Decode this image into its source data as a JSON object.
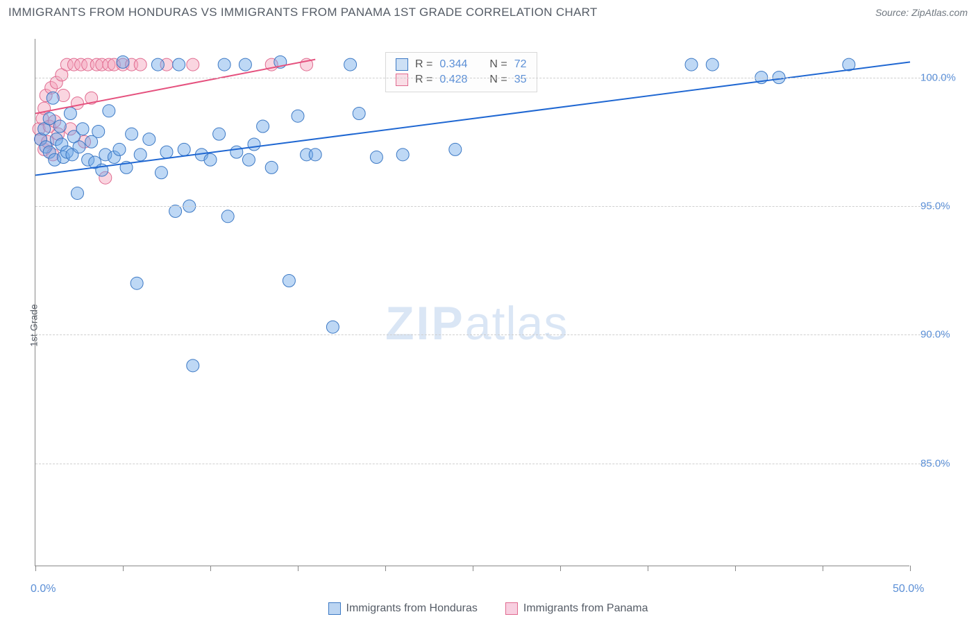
{
  "header": {
    "title": "IMMIGRANTS FROM HONDURAS VS IMMIGRANTS FROM PANAMA 1ST GRADE CORRELATION CHART",
    "source": "Source: ZipAtlas.com"
  },
  "chart": {
    "type": "scatter",
    "ylabel": "1st Grade",
    "watermark_a": "ZIP",
    "watermark_b": "atlas",
    "background_color": "#ffffff",
    "grid_color": "#cfcfcf",
    "axis_color": "#888888",
    "tick_label_color": "#5b8fd6",
    "xlim": [
      0,
      50
    ],
    "ylim": [
      81,
      101.5
    ],
    "xticks": [
      0,
      5,
      10,
      15,
      20,
      25,
      30,
      35,
      40,
      45,
      50
    ],
    "xtick_labels": {
      "0": "0.0%",
      "50": "50.0%"
    },
    "yticks": [
      85,
      90,
      95,
      100
    ],
    "ytick_labels": {
      "85": "85.0%",
      "90": "90.0%",
      "95": "95.0%",
      "100": "100.0%"
    },
    "marker_radius": 9,
    "marker_opacity": 0.45,
    "line_width": 2,
    "series": [
      {
        "name": "Immigrants from Honduras",
        "fill_color": "#6ea8e8",
        "stroke_color": "#3b78c4",
        "line_color": "#1f67d2",
        "r_value": "0.344",
        "n_value": "72",
        "trend": {
          "x1": 0,
          "y1": 96.2,
          "x2": 50,
          "y2": 100.6
        },
        "points": [
          [
            0.3,
            97.6
          ],
          [
            0.5,
            98.0
          ],
          [
            0.6,
            97.3
          ],
          [
            0.8,
            98.4
          ],
          [
            0.8,
            97.1
          ],
          [
            1.0,
            99.2
          ],
          [
            1.1,
            96.8
          ],
          [
            1.2,
            97.6
          ],
          [
            1.4,
            98.1
          ],
          [
            1.5,
            97.4
          ],
          [
            1.6,
            96.9
          ],
          [
            1.8,
            97.1
          ],
          [
            2.0,
            98.6
          ],
          [
            2.1,
            97.0
          ],
          [
            2.2,
            97.7
          ],
          [
            2.4,
            95.5
          ],
          [
            2.5,
            97.3
          ],
          [
            2.7,
            98.0
          ],
          [
            3.0,
            96.8
          ],
          [
            3.2,
            97.5
          ],
          [
            3.4,
            96.7
          ],
          [
            3.6,
            97.9
          ],
          [
            3.8,
            96.4
          ],
          [
            4.0,
            97.0
          ],
          [
            4.2,
            98.7
          ],
          [
            4.5,
            96.9
          ],
          [
            4.8,
            97.2
          ],
          [
            5.0,
            100.6
          ],
          [
            5.2,
            96.5
          ],
          [
            5.5,
            97.8
          ],
          [
            5.8,
            92.0
          ],
          [
            6.0,
            97.0
          ],
          [
            6.5,
            97.6
          ],
          [
            7.0,
            100.5
          ],
          [
            7.2,
            96.3
          ],
          [
            7.5,
            97.1
          ],
          [
            8.0,
            94.8
          ],
          [
            8.2,
            100.5
          ],
          [
            8.5,
            97.2
          ],
          [
            8.8,
            95.0
          ],
          [
            9.0,
            88.8
          ],
          [
            9.5,
            97.0
          ],
          [
            10.0,
            96.8
          ],
          [
            10.5,
            97.8
          ],
          [
            10.8,
            100.5
          ],
          [
            11.0,
            94.6
          ],
          [
            11.5,
            97.1
          ],
          [
            12.0,
            100.5
          ],
          [
            12.2,
            96.8
          ],
          [
            12.5,
            97.4
          ],
          [
            13.0,
            98.1
          ],
          [
            13.5,
            96.5
          ],
          [
            14.0,
            100.6
          ],
          [
            14.5,
            92.1
          ],
          [
            15.0,
            98.5
          ],
          [
            15.5,
            97.0
          ],
          [
            16.0,
            97.0
          ],
          [
            17.0,
            90.3
          ],
          [
            18.0,
            100.5
          ],
          [
            18.5,
            98.6
          ],
          [
            19.5,
            96.9
          ],
          [
            20.5,
            100.5
          ],
          [
            21.0,
            97.0
          ],
          [
            24.0,
            97.2
          ],
          [
            25.5,
            100.5
          ],
          [
            26.3,
            100.5
          ],
          [
            27.0,
            100.5
          ],
          [
            37.5,
            100.5
          ],
          [
            38.7,
            100.5
          ],
          [
            41.5,
            100.0
          ],
          [
            42.5,
            100.0
          ],
          [
            46.5,
            100.5
          ]
        ]
      },
      {
        "name": "Immigrants from Panama",
        "fill_color": "#f3a2ba",
        "stroke_color": "#e06a8f",
        "line_color": "#e5517e",
        "r_value": "0.428",
        "n_value": "35",
        "trend": {
          "x1": 0,
          "y1": 98.6,
          "x2": 16,
          "y2": 100.7
        },
        "points": [
          [
            0.2,
            98.0
          ],
          [
            0.3,
            97.6
          ],
          [
            0.4,
            98.4
          ],
          [
            0.5,
            97.2
          ],
          [
            0.5,
            98.8
          ],
          [
            0.6,
            99.3
          ],
          [
            0.7,
            97.5
          ],
          [
            0.8,
            98.1
          ],
          [
            0.9,
            99.6
          ],
          [
            1.0,
            97.0
          ],
          [
            1.1,
            98.3
          ],
          [
            1.2,
            99.8
          ],
          [
            1.3,
            97.8
          ],
          [
            1.5,
            100.1
          ],
          [
            1.6,
            99.3
          ],
          [
            1.8,
            100.5
          ],
          [
            2.0,
            98.0
          ],
          [
            2.2,
            100.5
          ],
          [
            2.4,
            99.0
          ],
          [
            2.6,
            100.5
          ],
          [
            2.8,
            97.5
          ],
          [
            3.0,
            100.5
          ],
          [
            3.2,
            99.2
          ],
          [
            3.5,
            100.5
          ],
          [
            3.8,
            100.5
          ],
          [
            4.0,
            96.1
          ],
          [
            4.2,
            100.5
          ],
          [
            4.5,
            100.5
          ],
          [
            5.0,
            100.5
          ],
          [
            5.5,
            100.5
          ],
          [
            6.0,
            100.5
          ],
          [
            7.5,
            100.5
          ],
          [
            9.0,
            100.5
          ],
          [
            13.5,
            100.5
          ],
          [
            15.5,
            100.5
          ]
        ]
      }
    ],
    "legend_bottom": [
      {
        "label": "Immigrants from Honduras",
        "fill": "#bcd5f2",
        "stroke": "#3b78c4"
      },
      {
        "label": "Immigrants from Panama",
        "fill": "#f8cfe0",
        "stroke": "#e06a8f"
      }
    ],
    "legend_top_labels": {
      "r_prefix": "R = ",
      "n_prefix": "N = "
    }
  }
}
